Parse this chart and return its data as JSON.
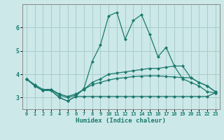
{
  "xlabel": "Humidex (Indice chaleur)",
  "x": [
    0,
    1,
    2,
    3,
    4,
    5,
    6,
    7,
    8,
    9,
    10,
    11,
    12,
    13,
    14,
    15,
    16,
    17,
    18,
    19,
    20,
    21,
    22,
    23
  ],
  "line_spike": [
    3.8,
    3.5,
    3.3,
    3.3,
    3.0,
    2.85,
    3.05,
    3.4,
    4.55,
    5.25,
    6.5,
    6.65,
    5.5,
    6.3,
    6.55,
    5.7,
    4.75,
    5.15,
    4.35,
    3.8,
    3.65,
    3.5,
    3.25,
    3.2
  ],
  "line_upper": [
    3.8,
    3.5,
    3.3,
    3.35,
    3.1,
    3.0,
    3.1,
    3.35,
    3.65,
    3.8,
    4.0,
    4.05,
    4.1,
    4.15,
    4.2,
    4.25,
    4.25,
    4.3,
    4.35,
    4.35,
    3.85,
    3.65,
    3.5,
    3.25
  ],
  "line_mid": [
    3.8,
    3.55,
    3.35,
    3.35,
    3.15,
    3.05,
    3.15,
    3.35,
    3.55,
    3.65,
    3.75,
    3.82,
    3.85,
    3.9,
    3.92,
    3.93,
    3.93,
    3.9,
    3.88,
    3.85,
    3.85,
    3.65,
    3.5,
    3.25
  ],
  "line_lower": [
    3.8,
    3.5,
    3.3,
    3.3,
    3.0,
    2.85,
    3.05,
    3.05,
    3.05,
    3.05,
    3.05,
    3.05,
    3.05,
    3.05,
    3.05,
    3.05,
    3.05,
    3.05,
    3.05,
    3.05,
    3.05,
    3.05,
    3.05,
    3.2
  ],
  "line_color": "#1a7a6e",
  "bg_color": "#cce8e8",
  "grid_color": "#aacccc",
  "ylim": [
    2.5,
    7.0
  ],
  "xlim": [
    -0.5,
    23.5
  ],
  "yticks": [
    3,
    4,
    5,
    6
  ],
  "xticks": [
    0,
    1,
    2,
    3,
    4,
    5,
    6,
    7,
    8,
    9,
    10,
    11,
    12,
    13,
    14,
    15,
    16,
    17,
    18,
    19,
    20,
    21,
    22,
    23
  ]
}
